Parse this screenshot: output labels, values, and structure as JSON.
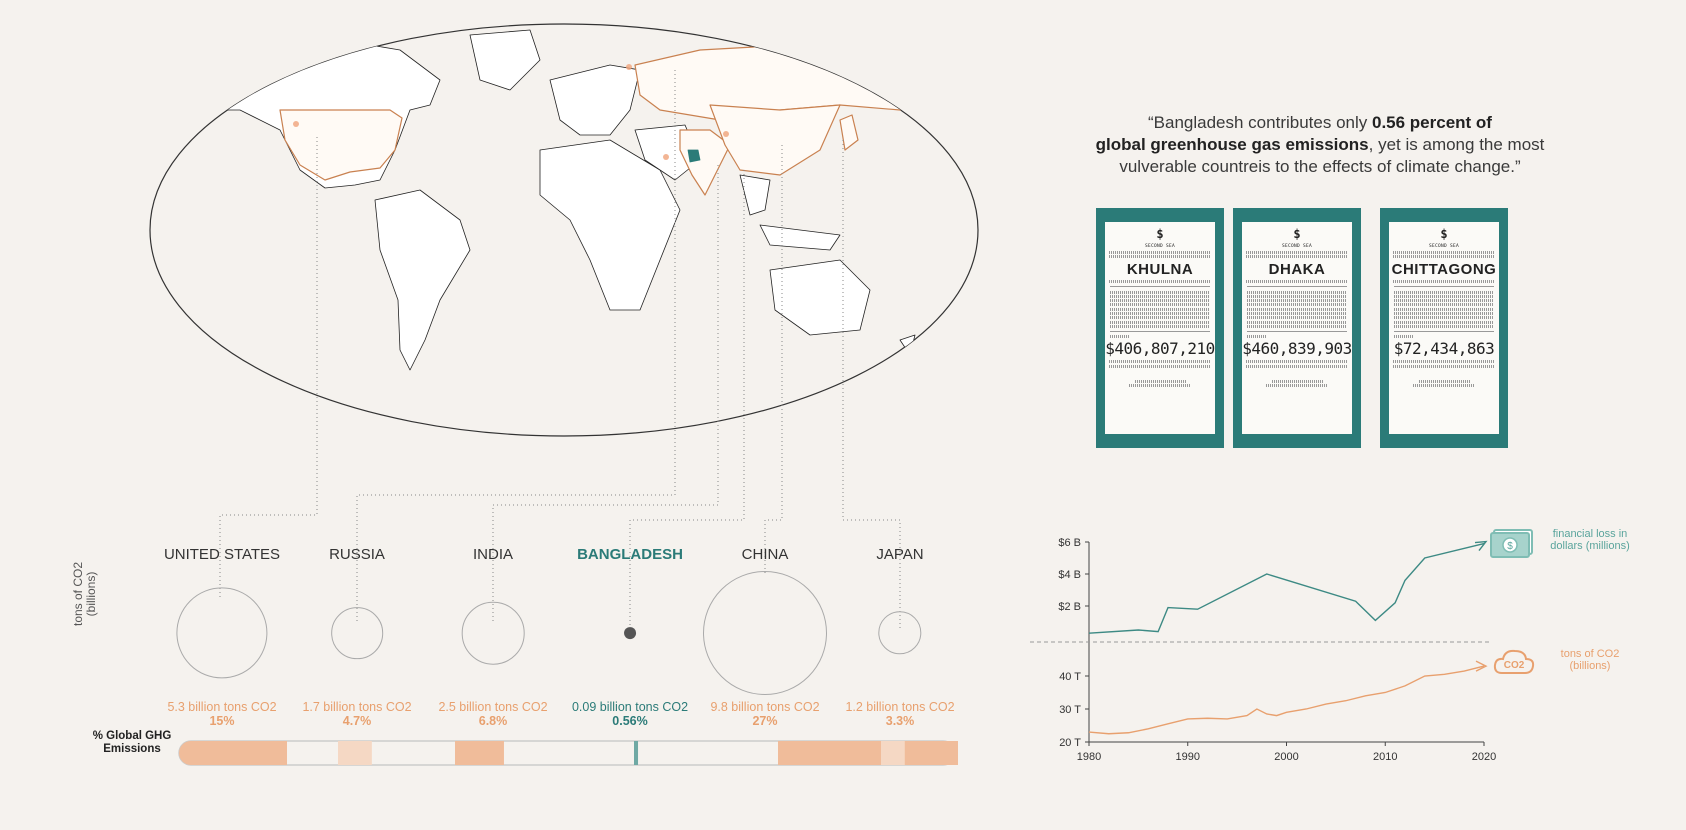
{
  "quote": {
    "open": "“Bangladesh contributes only ",
    "bold1": "0.56 percent of",
    "bold2": "global greenhouse gas emissions",
    "rest": ", yet is among the most",
    "line3": "vulverable countreis to the effects of climate change.”"
  },
  "receipts": [
    {
      "brand": "SECOND SEA",
      "city": "KHULNA",
      "amount": "$406,807,210"
    },
    {
      "brand": "SECOND SEA",
      "city": "DHAKA",
      "amount": "$460,839,903"
    },
    {
      "brand": "SECOND SEA",
      "city": "CHITTAGONG",
      "amount": "$72,434,863"
    }
  ],
  "countries": [
    {
      "name": "UNITED STATES",
      "value_text": "5.3 billion tons CO2",
      "pct_text": "15%"
    },
    {
      "name": "RUSSIA",
      "value_text": "1.7 billion tons CO2",
      "pct_text": "4.7%"
    },
    {
      "name": "INDIA",
      "value_text": "2.5 billion tons CO2",
      "pct_text": "6.8%"
    },
    {
      "name": "BANGLADESH",
      "value_text": "0.09 billion tons CO2",
      "pct_text": "0.56%"
    },
    {
      "name": "CHINA",
      "value_text": "9.8 billion tons CO2",
      "pct_text": "27%"
    },
    {
      "name": "JAPAN",
      "value_text": "1.2 billion tons CO2",
      "pct_text": "3.3%"
    }
  ],
  "bubble_axis_label": "tons of CO2 (billions)",
  "ghg_label": "% Global GHG Emissions",
  "colors": {
    "accent": "#e8a06e",
    "teal": "#2b7b78",
    "light": "#f3d3bd",
    "bg": "#f5f2ee"
  },
  "chart_data": [
    {
      "type": "bar",
      "title": "",
      "categories": [
        "UNITED STATES",
        "RUSSIA",
        "INDIA",
        "BANGLADESH",
        "CHINA",
        "JAPAN"
      ],
      "series": [
        {
          "name": "tons of CO2 (billions)",
          "values": [
            5.3,
            1.7,
            2.5,
            0.09,
            9.8,
            1.2
          ]
        },
        {
          "name": "% Global GHG Emissions",
          "values": [
            15,
            4.7,
            6.8,
            0.56,
            27,
            3.3
          ]
        }
      ]
    },
    {
      "type": "line",
      "x": [
        1980,
        1985,
        1987,
        1988,
        1991,
        1998,
        2007,
        2009,
        2011,
        2012,
        2014,
        2020
      ],
      "xticks": [
        "1980",
        "1990",
        "2000",
        "2010",
        "2020"
      ],
      "xlim": [
        1980,
        2020
      ],
      "series": [
        {
          "name": "financial loss in dollars (millions)",
          "unit": "B",
          "yticks": [
            "$2 B",
            "$4 B",
            "$6 B"
          ],
          "ylim": [
            0,
            6
          ],
          "values": [
            0.3,
            0.5,
            0.4,
            1.9,
            1.8,
            4.0,
            2.3,
            1.1,
            2.2,
            3.6,
            5.0,
            5.9
          ]
        }
      ],
      "series2": [
        {
          "name": "tons of CO2 (billions)",
          "yticks": [
            "20 T",
            "30 T",
            "40 T"
          ],
          "ylim": [
            20,
            45
          ],
          "x": [
            1980,
            1982,
            1984,
            1986,
            1988,
            1990,
            1992,
            1994,
            1996,
            1997,
            1998,
            1999,
            2000,
            2002,
            2004,
            2006,
            2008,
            2010,
            2012,
            2014,
            2016,
            2018,
            2020
          ],
          "values": [
            23,
            22.5,
            22.8,
            24,
            25.5,
            27,
            27.2,
            27,
            28,
            30,
            28.5,
            28,
            29,
            30,
            31.5,
            32.5,
            34,
            35,
            37,
            40,
            40.5,
            41.5,
            43
          ]
        }
      ]
    }
  ],
  "line_legend": {
    "money": "financial loss in dollars (millions)",
    "co2": "tons of CO2 (billions)",
    "co2_icon": "CO2"
  }
}
